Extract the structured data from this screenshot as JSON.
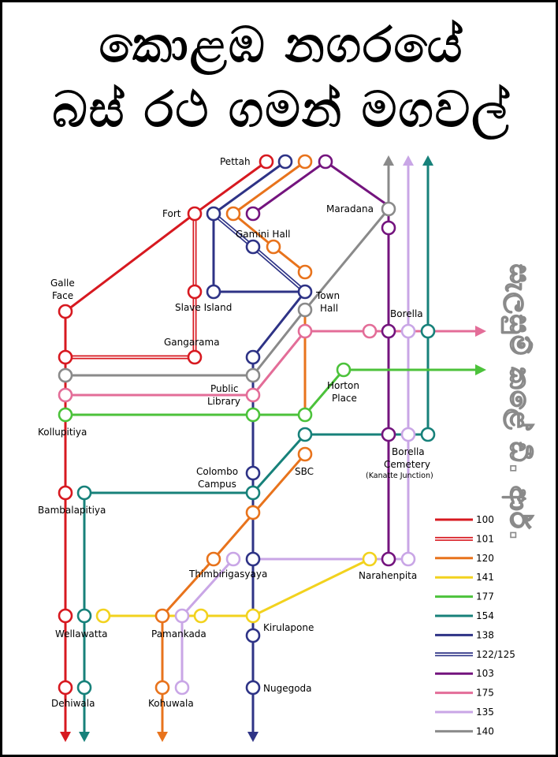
{
  "title": {
    "line1": "කොළඹ නගරයේ",
    "line2": "බස් රථ ගමන් මගවල්"
  },
  "side_note": "සැලසුම් කළේ ඩී. ආර්.",
  "places": {
    "pettah": "Pettah",
    "fort": "Fort",
    "maradana": "Maradana",
    "gamini_hall": "Gamini Hall",
    "galle_face_1": "Galle",
    "galle_face_2": "Face",
    "slave_island": "Slave Island",
    "town_hall_1": "Town",
    "town_hall_2": "Hall",
    "borella": "Borella",
    "gangarama": "Gangarama",
    "public_library_1": "Public",
    "public_library_2": "Library",
    "horton_place_1": "Horton",
    "horton_place_2": "Place",
    "kollupitiya": "Kollupitiya",
    "borella_cemetery_1": "Borella",
    "borella_cemetery_2": "Cemetery",
    "kanatte": "(Kanatte Junction)",
    "colombo_campus_1": "Colombo",
    "colombo_campus_2": "Campus",
    "sbc": "SBC",
    "bambalapitiya": "Bambalapitiya",
    "thimbirigasyaya": "Thimbirigasyaya",
    "narahenpita": "Narahenpita",
    "wellawatta": "Wellawatta",
    "pamankada": "Pamankada",
    "kirulapone": "Kirulapone",
    "nugegoda": "Nugegoda",
    "dehiwala": "Dehiwala",
    "kohuwala": "Kohuwala"
  },
  "legend": [
    {
      "route": "100",
      "color": "#d71920",
      "style": "solid"
    },
    {
      "route": "101",
      "color": "#d71920",
      "style": "double"
    },
    {
      "route": "120",
      "color": "#e8731c",
      "style": "solid"
    },
    {
      "route": "141",
      "color": "#f2d21e",
      "style": "solid"
    },
    {
      "route": "177",
      "color": "#4cc23b",
      "style": "solid"
    },
    {
      "route": "154",
      "color": "#17817a",
      "style": "solid"
    },
    {
      "route": "138",
      "color": "#2e3386",
      "style": "solid"
    },
    {
      "route": "122/125",
      "color": "#2e3386",
      "style": "double"
    },
    {
      "route": "103",
      "color": "#74147e",
      "style": "solid"
    },
    {
      "route": "175",
      "color": "#e36d98",
      "style": "solid"
    },
    {
      "route": "135",
      "color": "#c9a6e6",
      "style": "solid"
    },
    {
      "route": "140",
      "color": "#8a8a8a",
      "style": "solid"
    }
  ]
}
